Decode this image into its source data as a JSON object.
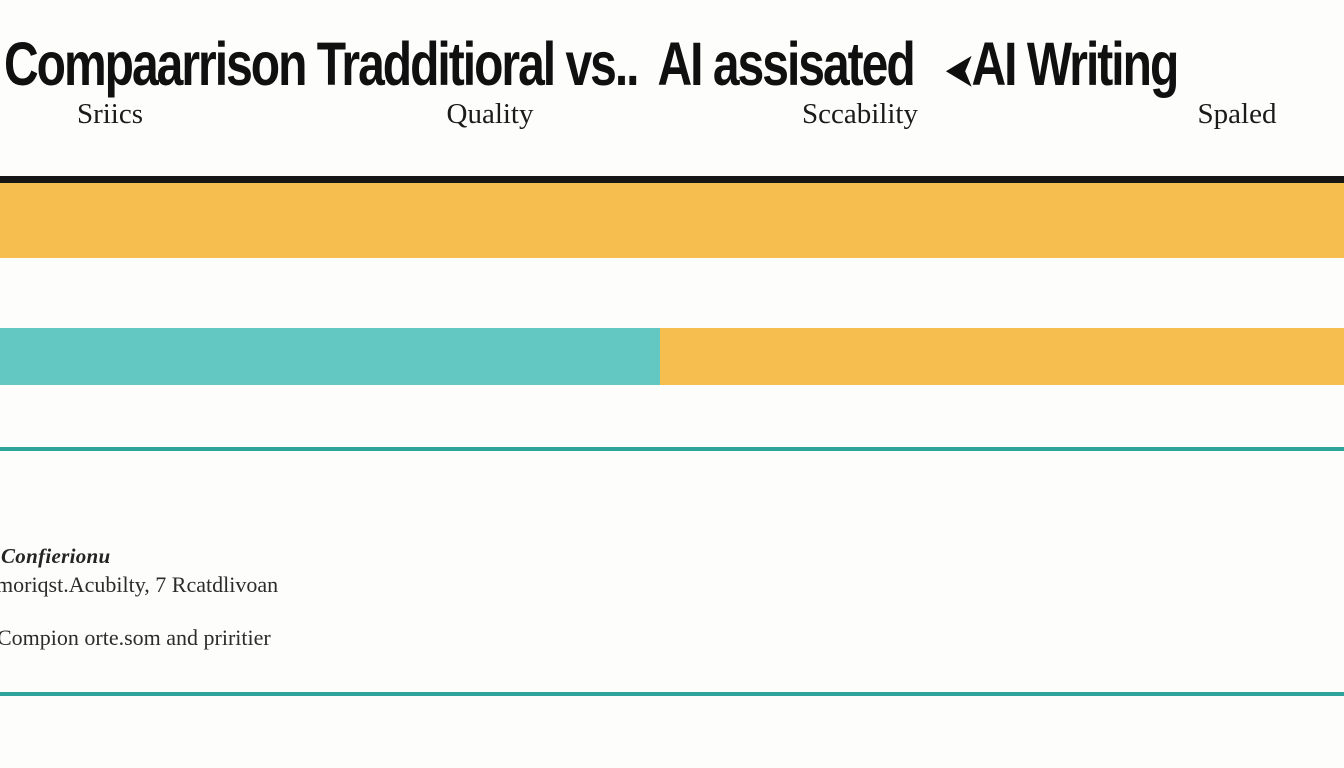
{
  "title": {
    "segment1": "Compaarrison Tradditioral vs..",
    "segment2": "AI assisated",
    "arrow_glyph": "➤",
    "segment3": "AI Writing"
  },
  "columns": [
    {
      "label": "Sriics"
    },
    {
      "label": "Quality"
    },
    {
      "label": "Sccability"
    },
    {
      "label": "Spaled"
    }
  ],
  "footnotes": {
    "line1": "Confierionu",
    "line2": "moriqst.Acubilty, 7 Rcatdlivoan",
    "line3": "Compion orte.som and priritier"
  },
  "colors": {
    "yellow": "#F6BE4E",
    "teal": "#63C7C2",
    "teal_line": "#2EA49D",
    "black_line": "#161616"
  },
  "chart_data": {
    "type": "bar",
    "orientation": "horizontal-stacked",
    "title": "Compaarrison Tradditioral vs.. AI assisated AI Writing",
    "categories": [
      "Sriics",
      "Quality",
      "Sccability",
      "Spaled"
    ],
    "rows": [
      {
        "name": "row-1",
        "segments": [
          {
            "color_name": "yellow",
            "width_pct": 100
          }
        ]
      },
      {
        "name": "row-2",
        "segments": [
          {
            "color_name": "teal",
            "width_pct": 49.1
          },
          {
            "color_name": "yellow",
            "width_pct": 50.9
          }
        ]
      }
    ],
    "xlim": [
      0,
      100
    ],
    "legend": "none",
    "gridlines": "none",
    "annotations": [
      "Confierionu",
      "moriqst.Acubilty, 7 Rcatdlivoan",
      "Compion orte.som and priritier"
    ]
  }
}
